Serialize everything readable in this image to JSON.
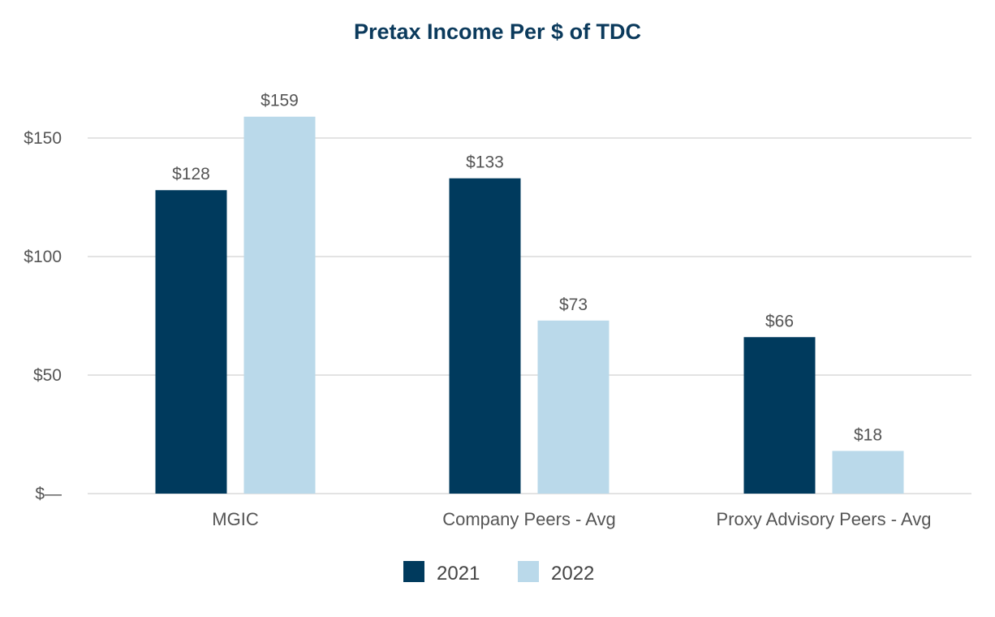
{
  "chart_data": {
    "type": "bar",
    "title": "Pretax Income Per $ of TDC",
    "categories": [
      "MGIC",
      "Company Peers -  Avg",
      "Proxy Advisory Peers - Avg"
    ],
    "series": [
      {
        "name": "2021",
        "values": [
          128,
          133,
          66
        ],
        "labels": [
          "$128",
          "$133",
          "$66"
        ],
        "color": "#003a5d"
      },
      {
        "name": "2022",
        "values": [
          159,
          73,
          18
        ],
        "labels": [
          "$159",
          "$73",
          "$18"
        ],
        "color": "#bad9ea"
      }
    ],
    "y_ticks": [
      {
        "value": 0,
        "label": "$—"
      },
      {
        "value": 50,
        "label": "$50"
      },
      {
        "value": 100,
        "label": "$100"
      },
      {
        "value": 150,
        "label": "$150"
      }
    ],
    "ylim": [
      0,
      160
    ],
    "grid": true,
    "legend_position": "bottom-center",
    "colors": {
      "title": "#0b3a5c",
      "grid": "#e3e3e3",
      "text": "#555555"
    }
  }
}
